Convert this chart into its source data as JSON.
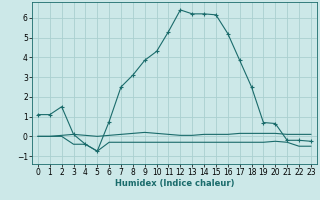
{
  "xlabel": "Humidex (Indice chaleur)",
  "ylabel": "",
  "bg_color": "#cce8e8",
  "grid_color": "#aad0d0",
  "line_color": "#1a6b6b",
  "xlim": [
    -0.5,
    23.5
  ],
  "ylim": [
    -1.4,
    6.8
  ],
  "xticks": [
    0,
    1,
    2,
    3,
    4,
    5,
    6,
    7,
    8,
    9,
    10,
    11,
    12,
    13,
    14,
    15,
    16,
    17,
    18,
    19,
    20,
    21,
    22,
    23
  ],
  "yticks": [
    -1,
    0,
    1,
    2,
    3,
    4,
    5,
    6
  ],
  "main_x": [
    0,
    1,
    2,
    3,
    4,
    5,
    6,
    7,
    8,
    9,
    10,
    11,
    12,
    13,
    14,
    15,
    16,
    17,
    18,
    19,
    20,
    21,
    22,
    23
  ],
  "main_y": [
    1.1,
    1.1,
    1.5,
    0.1,
    -0.4,
    -0.75,
    0.75,
    2.5,
    3.1,
    3.85,
    4.3,
    5.3,
    6.4,
    6.2,
    6.2,
    6.15,
    5.2,
    3.85,
    2.5,
    0.7,
    0.65,
    -0.2,
    -0.2,
    -0.25
  ],
  "line2_x": [
    0,
    1,
    2,
    3,
    4,
    5,
    6,
    7,
    8,
    9,
    10,
    11,
    12,
    13,
    14,
    15,
    16,
    17,
    18,
    19,
    20,
    21,
    22,
    23
  ],
  "line2_y": [
    0.0,
    0.0,
    0.05,
    0.1,
    0.05,
    0.0,
    0.05,
    0.1,
    0.15,
    0.2,
    0.15,
    0.1,
    0.05,
    0.05,
    0.1,
    0.1,
    0.1,
    0.15,
    0.15,
    0.15,
    0.15,
    0.1,
    0.1,
    0.1
  ],
  "line3_x": [
    0,
    1,
    2,
    3,
    4,
    5,
    6,
    7,
    8,
    9,
    10,
    11,
    12,
    13,
    14,
    15,
    16,
    17,
    18,
    19,
    20,
    21,
    22,
    23
  ],
  "line3_y": [
    0.0,
    0.0,
    0.0,
    -0.4,
    -0.4,
    -0.75,
    -0.3,
    -0.3,
    -0.3,
    -0.3,
    -0.3,
    -0.3,
    -0.3,
    -0.3,
    -0.3,
    -0.3,
    -0.3,
    -0.3,
    -0.3,
    -0.3,
    -0.25,
    -0.3,
    -0.5,
    -0.5
  ]
}
